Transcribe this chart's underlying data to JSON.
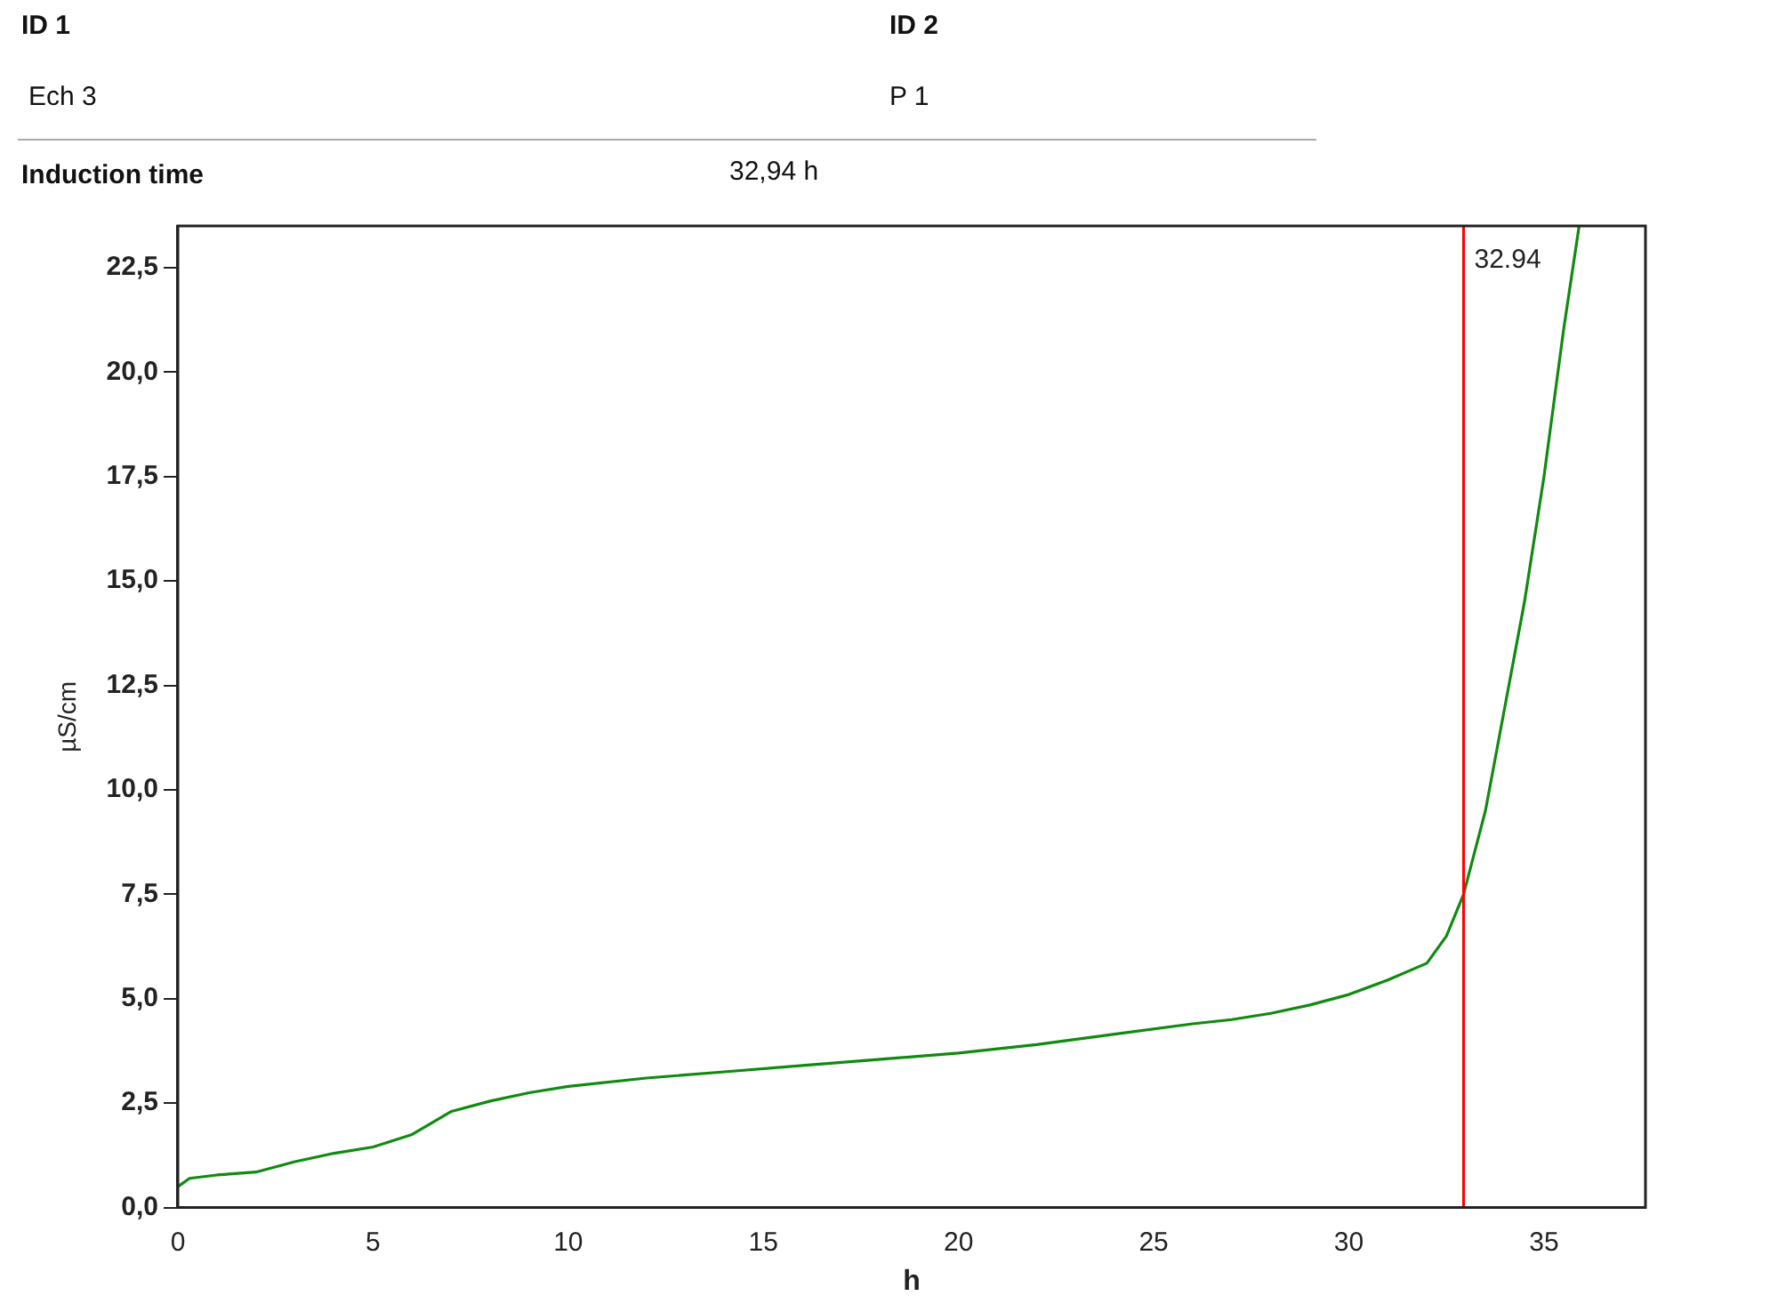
{
  "chart_data": {
    "type": "line",
    "xlabel": "h",
    "ylabel": "µS/cm",
    "annotations": [
      "ID 1",
      "Ech 3",
      "ID 2",
      "P 1",
      "Induction time",
      "32,94 h"
    ],
    "xlim": [
      0,
      37.6
    ],
    "xticks": [
      0,
      5,
      10,
      15,
      20,
      25,
      30,
      35
    ],
    "ylim": [
      0,
      23.5
    ],
    "yticks": [
      {
        "value": 0,
        "label": "0,0"
      },
      {
        "value": 2.5,
        "label": "2,5"
      },
      {
        "value": 5,
        "label": "5,0"
      },
      {
        "value": 7.5,
        "label": "7,5"
      },
      {
        "value": 10,
        "label": "10,0"
      },
      {
        "value": 12.5,
        "label": "12,5"
      },
      {
        "value": 15,
        "label": "15,0"
      },
      {
        "value": 17.5,
        "label": "17,5"
      },
      {
        "value": 20,
        "label": "20,0"
      },
      {
        "value": 22.5,
        "label": "22,5"
      }
    ],
    "grid": false,
    "legend": false,
    "marker": "none",
    "line_style": "solid",
    "ref_lines": [
      {
        "axis": "x",
        "value": 32.94,
        "label": "32.94",
        "color": "#ff0000"
      }
    ],
    "series": [
      {
        "color": "#108a10",
        "x": [
          0,
          0.3,
          1,
          2,
          3,
          4,
          5,
          6,
          7,
          8,
          9,
          10,
          12,
          14,
          16,
          18,
          20,
          22,
          24,
          26,
          27,
          28,
          29,
          30,
          31,
          32,
          32.5,
          32.94,
          33.5,
          34,
          34.5,
          35,
          35.5,
          35.9
        ],
        "values": [
          0.5,
          0.7,
          0.78,
          0.85,
          1.1,
          1.3,
          1.45,
          1.75,
          2.3,
          2.55,
          2.75,
          2.9,
          3.1,
          3.25,
          3.4,
          3.55,
          3.7,
          3.9,
          4.15,
          4.4,
          4.5,
          4.65,
          4.85,
          5.1,
          5.45,
          5.85,
          6.5,
          7.5,
          9.5,
          12,
          14.5,
          17.5,
          21,
          23.5
        ]
      }
    ]
  }
}
